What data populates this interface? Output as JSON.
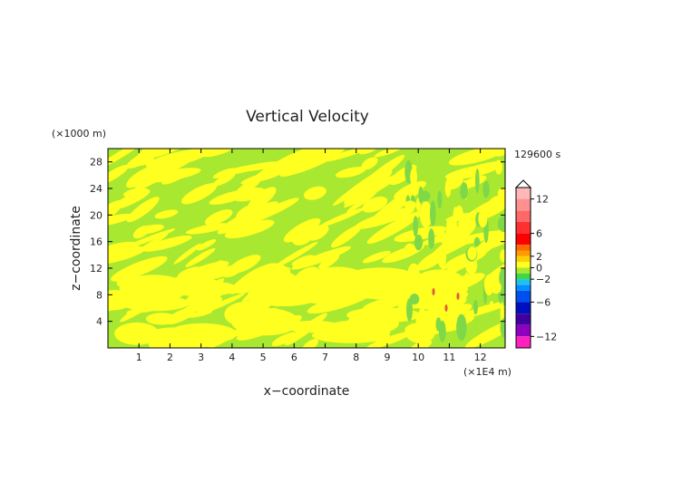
{
  "chart_data": {
    "type": "heatmap",
    "title": "Vertical Velocity",
    "xlabel": "x−coordinate",
    "ylabel": "z−coordinate",
    "x_unit": "(×1E4 m)",
    "y_unit": "(×1000 m)",
    "time_label": "129600 s",
    "xlim": [
      0,
      12.8
    ],
    "ylim": [
      0,
      30
    ],
    "x_ticks": [
      "1",
      "2",
      "3",
      "4",
      "5",
      "6",
      "7",
      "8",
      "9",
      "10",
      "11",
      "12"
    ],
    "y_ticks": [
      "4",
      "8",
      "12",
      "16",
      "20",
      "24",
      "28"
    ],
    "colorbar_ticks": [
      "12",
      "6",
      "2",
      "0",
      "−2",
      "−6",
      "−12"
    ],
    "colorbar_values": [
      12,
      6,
      2,
      0,
      -2,
      -6,
      -12
    ],
    "colorbar_range": [
      -14,
      14
    ],
    "colors": {
      "slightly_positive": "#ffff20",
      "slightly_negative": "#a8e830"
    }
  }
}
